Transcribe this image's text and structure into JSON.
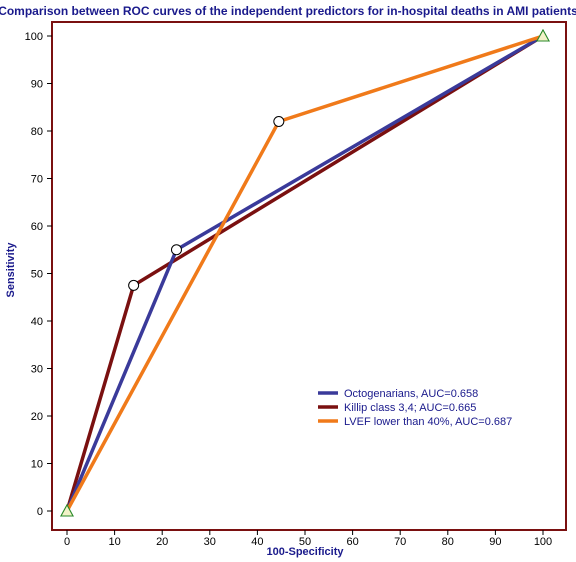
{
  "chart_data": {
    "type": "line",
    "title": "Comparison between ROC curves of the  independent predictors for in-hospital deaths in AMI patients",
    "xlabel": "100-Specificity",
    "ylabel": "Sensitivity",
    "xlim": [
      0,
      100
    ],
    "ylim": [
      0,
      100
    ],
    "xticks": [
      "0",
      "10",
      "20",
      "30",
      "40",
      "50",
      "60",
      "70",
      "80",
      "90",
      "100"
    ],
    "yticks": [
      "0",
      "10",
      "20",
      "30",
      "40",
      "50",
      "60",
      "70",
      "80",
      "90",
      "100"
    ],
    "grid": false,
    "legend_position": "bottom-right",
    "series": [
      {
        "name": "Octogenarians, AUC=0.658",
        "color": "#3a3a9a",
        "x": [
          0,
          23,
          100
        ],
        "y": [
          0,
          55,
          100
        ]
      },
      {
        "name": "Killip class 3,4; AUC=0.665",
        "color": "#7a1010",
        "x": [
          0,
          14,
          100
        ],
        "y": [
          0,
          47.5,
          100
        ]
      },
      {
        "name": "LVEF lower than 40%, AUC=0.687",
        "color": "#f07a1a",
        "x": [
          0,
          44.5,
          100
        ],
        "y": [
          0,
          82,
          100
        ]
      }
    ],
    "markers": {
      "circle_color": "#ffffff",
      "triangle_color": "#f2f2c8",
      "triangle_stroke": "#2a8a2a"
    },
    "title_color": "#1a1a8c",
    "axis_color": "#1a1a8c",
    "frame_color": "#7a1010"
  }
}
